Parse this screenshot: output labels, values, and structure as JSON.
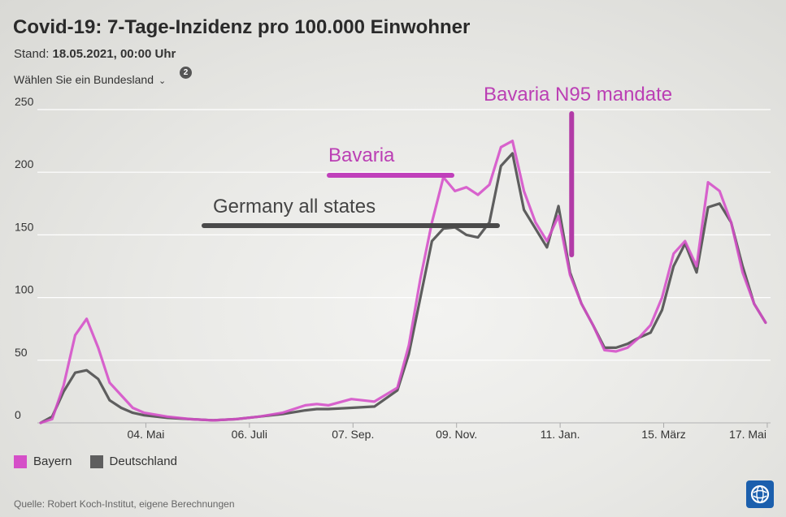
{
  "header": {
    "title": "Covid-19: 7-Tage-Inzidenz pro 100.000 Einwohner",
    "stand_prefix": "Stand:",
    "stand_value": "18.05.2021, 00:00 Uhr",
    "selector_label": "Wählen Sie ein Bundesland",
    "badge": "2"
  },
  "legend": {
    "bayern": "Bayern",
    "deutschland": "Deutschland"
  },
  "footer": {
    "source": "Quelle: Robert Koch-Institut, eigene Berechnungen"
  },
  "colors": {
    "bayern": "#d54fc8",
    "deutschland": "#5e5e5e",
    "overlap": "#7a3a72",
    "annotation_text": "#bb3fb4"
  },
  "chart_data": {
    "type": "line",
    "title": "Covid-19: 7-Tage-Inzidenz pro 100.000 Einwohner",
    "xlabel": "",
    "ylabel": "",
    "ylim": [
      0,
      250
    ],
    "yticks": [
      0,
      50,
      100,
      150,
      200,
      250
    ],
    "grid": true,
    "x_tick_labels": [
      "04. Mai",
      "06. Juli",
      "07. Sep.",
      "09. Nov.",
      "11. Jan.",
      "15. März",
      "17. Mai"
    ],
    "x": [
      "2020-03-01",
      "2020-03-08",
      "2020-03-15",
      "2020-03-22",
      "2020-03-29",
      "2020-04-05",
      "2020-04-12",
      "2020-04-19",
      "2020-04-26",
      "2020-05-03",
      "2020-05-17",
      "2020-05-31",
      "2020-06-14",
      "2020-06-28",
      "2020-07-12",
      "2020-07-26",
      "2020-08-09",
      "2020-08-16",
      "2020-08-23",
      "2020-09-06",
      "2020-09-20",
      "2020-10-04",
      "2020-10-11",
      "2020-10-18",
      "2020-10-25",
      "2020-11-01",
      "2020-11-08",
      "2020-11-15",
      "2020-11-22",
      "2020-11-29",
      "2020-12-06",
      "2020-12-13",
      "2020-12-20",
      "2020-12-27",
      "2021-01-03",
      "2021-01-10",
      "2021-01-17",
      "2021-01-24",
      "2021-01-31",
      "2021-02-07",
      "2021-02-14",
      "2021-02-21",
      "2021-02-28",
      "2021-03-07",
      "2021-03-14",
      "2021-03-21",
      "2021-03-28",
      "2021-04-04",
      "2021-04-11",
      "2021-04-18",
      "2021-04-25",
      "2021-05-02",
      "2021-05-09",
      "2021-05-16"
    ],
    "series": [
      {
        "name": "Bayern",
        "values": [
          0,
          3,
          30,
          70,
          83,
          60,
          32,
          22,
          12,
          8,
          5,
          3,
          2,
          3,
          5,
          8,
          14,
          15,
          14,
          19,
          17,
          28,
          62,
          115,
          160,
          196,
          185,
          188,
          182,
          190,
          220,
          225,
          185,
          160,
          145,
          165,
          118,
          95,
          78,
          58,
          57,
          60,
          68,
          78,
          100,
          135,
          145,
          125,
          192,
          185,
          160,
          120,
          95,
          80
        ]
      },
      {
        "name": "Deutschland",
        "values": [
          0,
          5,
          25,
          40,
          42,
          35,
          18,
          12,
          8,
          6,
          4,
          3,
          2,
          3,
          5,
          7,
          10,
          11,
          11,
          12,
          13,
          26,
          55,
          100,
          145,
          155,
          156,
          150,
          148,
          160,
          205,
          215,
          170,
          155,
          140,
          173,
          120,
          95,
          78,
          60,
          60,
          63,
          68,
          72,
          90,
          125,
          143,
          120,
          172,
          175,
          160,
          125,
          95,
          80
        ]
      }
    ],
    "annotations": [
      {
        "text": "Bavaria",
        "series": "Bayern"
      },
      {
        "text": "Germany all states",
        "series": "Deutschland"
      },
      {
        "text": "Bavaria N95 mandate",
        "marker": "vertical-line",
        "date": "2021-01-18"
      }
    ]
  }
}
